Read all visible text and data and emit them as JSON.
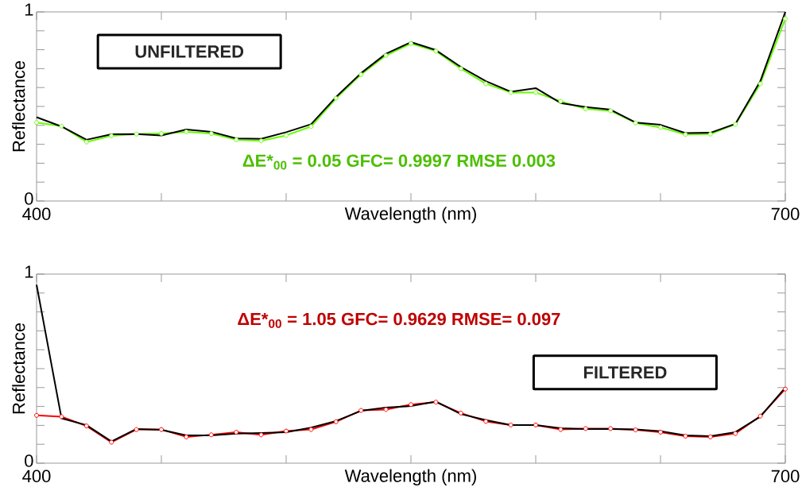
{
  "chart_data": [
    {
      "type": "line",
      "xlabel": "Wavelength (nm)",
      "ylabel": "Reflectance",
      "x": [
        400,
        410,
        420,
        430,
        440,
        450,
        460,
        470,
        480,
        490,
        500,
        510,
        520,
        530,
        540,
        550,
        560,
        570,
        580,
        590,
        600,
        610,
        620,
        630,
        640,
        650,
        660,
        670,
        680,
        690,
        700
      ],
      "series": [
        {
          "color": "#66ff00",
          "marker": "circle",
          "values": [
            0.415,
            0.396,
            0.312,
            0.345,
            0.354,
            0.357,
            0.366,
            0.357,
            0.324,
            0.318,
            0.347,
            0.394,
            0.543,
            0.669,
            0.77,
            0.833,
            0.793,
            0.7,
            0.62,
            0.574,
            0.574,
            0.527,
            0.487,
            0.477,
            0.413,
            0.389,
            0.352,
            0.354,
            0.406,
            0.62,
            0.964
          ]
        },
        {
          "color": "#000000",
          "values": [
            0.443,
            0.394,
            0.324,
            0.353,
            0.354,
            0.347,
            0.378,
            0.366,
            0.331,
            0.329,
            0.364,
            0.406,
            0.55,
            0.676,
            0.779,
            0.84,
            0.798,
            0.709,
            0.634,
            0.578,
            0.597,
            0.518,
            0.497,
            0.483,
            0.415,
            0.403,
            0.359,
            0.361,
            0.408,
            0.634,
            1.0
          ]
        }
      ],
      "annotations": [
        "UNFILTERED",
        "ΔE*$_{00}$ = 0.05   GFC= 0.9997      RMSE    0.003"
      ],
      "xlim": [
        400,
        700
      ],
      "ylim": [
        0,
        1
      ],
      "xticks": [
        400,
        {
          "value": 450,
          "label": null
        },
        {
          "value": 500,
          "label": null
        },
        {
          "value": 550,
          "label": null
        },
        {
          "value": 600,
          "label": null
        },
        {
          "value": 650,
          "label": null
        },
        700
      ],
      "yticks": [
        0,
        {
          "value": 0.1,
          "label": null
        },
        {
          "value": 0.2,
          "label": null
        },
        {
          "value": 0.3,
          "label": null
        },
        {
          "value": 0.4,
          "label": null
        },
        {
          "value": 0.5,
          "label": null
        },
        {
          "value": 0.6,
          "label": null
        },
        {
          "value": 0.7,
          "label": null
        },
        {
          "value": 0.8,
          "label": null
        },
        {
          "value": 0.9,
          "label": null
        },
        1
      ]
    },
    {
      "type": "line",
      "xlabel": "Wavelength (nm)",
      "ylabel": "Reflectance",
      "x": [
        400,
        410,
        420,
        430,
        440,
        450,
        460,
        470,
        480,
        490,
        500,
        510,
        520,
        530,
        540,
        550,
        560,
        570,
        580,
        590,
        600,
        610,
        620,
        630,
        640,
        650,
        660,
        670,
        680,
        690,
        700
      ],
      "series": [
        {
          "color": "#ff0000",
          "marker": "circle",
          "values": [
            0.253,
            0.246,
            0.197,
            0.111,
            0.178,
            0.178,
            0.139,
            0.15,
            0.164,
            0.15,
            0.17,
            0.178,
            0.219,
            0.279,
            0.284,
            0.31,
            0.323,
            0.265,
            0.221,
            0.202,
            0.202,
            0.178,
            0.183,
            0.183,
            0.176,
            0.164,
            0.143,
            0.139,
            0.157,
            0.249,
            0.392
          ]
        },
        {
          "color": "#000000",
          "values": [
            0.944,
            0.237,
            0.201,
            0.115,
            0.181,
            0.176,
            0.147,
            0.147,
            0.156,
            0.16,
            0.164,
            0.188,
            0.223,
            0.277,
            0.294,
            0.302,
            0.326,
            0.26,
            0.228,
            0.202,
            0.202,
            0.185,
            0.181,
            0.181,
            0.178,
            0.169,
            0.147,
            0.143,
            0.164,
            0.246,
            0.4
          ]
        }
      ],
      "annotations": [
        "FILTERED",
        "ΔE*$_{00}$ = 1.05   GFC= 0.9629      RMSE=  0.097"
      ],
      "xlim": [
        400,
        700
      ],
      "ylim": [
        0,
        1
      ],
      "xticks": [
        400,
        {
          "value": 450,
          "label": null
        },
        {
          "value": 500,
          "label": null
        },
        {
          "value": 550,
          "label": null
        },
        {
          "value": 600,
          "label": null
        },
        {
          "value": 650,
          "label": null
        },
        700
      ],
      "yticks": [
        0,
        {
          "value": 0.1,
          "label": null
        },
        {
          "value": 0.2,
          "label": null
        },
        {
          "value": 0.3,
          "label": null
        },
        {
          "value": 0.4,
          "label": null
        },
        {
          "value": 0.5,
          "label": null
        },
        {
          "value": 0.6,
          "label": null
        },
        {
          "value": 0.7,
          "label": null
        },
        {
          "value": 0.8,
          "label": null
        },
        {
          "value": 0.9,
          "label": null
        },
        1
      ]
    }
  ]
}
